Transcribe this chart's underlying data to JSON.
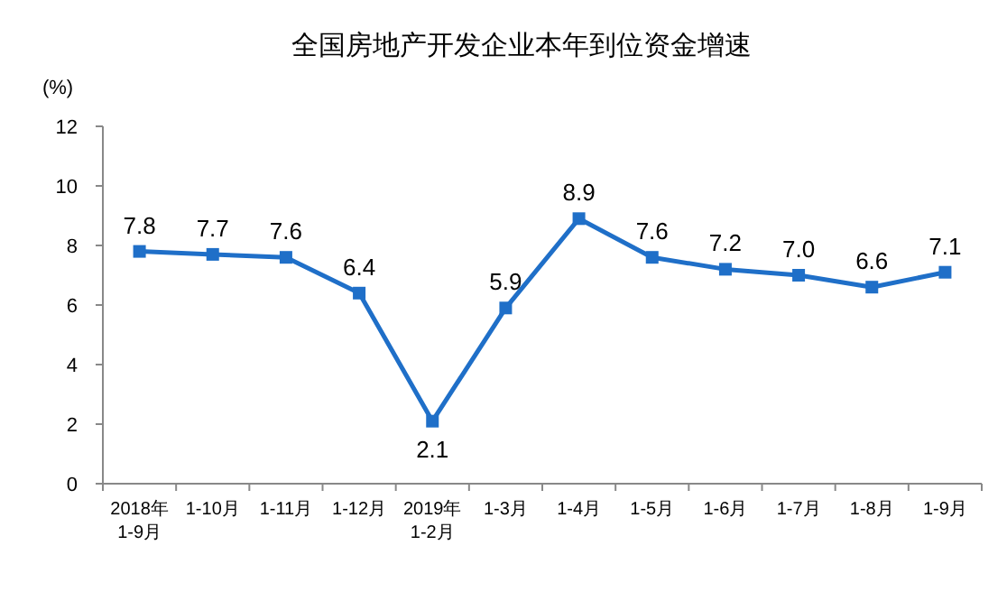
{
  "chart_data": {
    "type": "line",
    "title": "全国房地产开发企业本年到位资金增速",
    "ylabel": "(%)",
    "categories": [
      "2018年\n1-9月",
      "1-10月",
      "1-11月",
      "1-12月",
      "2019年\n1-2月",
      "1-3月",
      "1-4月",
      "1-5月",
      "1-6月",
      "1-7月",
      "1-8月",
      "1-9月"
    ],
    "series": [
      {
        "color": "#1f6fc8",
        "values": [
          7.8,
          7.7,
          7.6,
          6.4,
          2.1,
          5.9,
          8.9,
          7.6,
          7.2,
          7.0,
          6.6,
          7.1
        ],
        "value_labels": [
          "7.8",
          "7.7",
          "7.6",
          "6.4",
          "2.1",
          "5.9",
          "8.9",
          "7.6",
          "7.2",
          "7.0",
          "6.6",
          "7.1"
        ]
      }
    ],
    "ylim": [
      0,
      12
    ],
    "yticks": [
      0,
      2,
      4,
      6,
      8,
      10,
      12
    ],
    "grid": false,
    "marker": "square",
    "line_style": "solid"
  }
}
